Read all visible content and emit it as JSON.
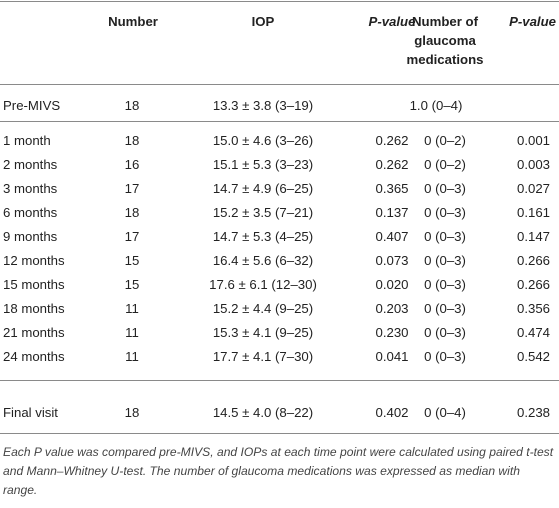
{
  "headers": {
    "number": "Number",
    "iop": "IOP",
    "p_value_1": "P-value",
    "medications_line1": "Number of",
    "medications_line2": "glaucoma",
    "medications_line3": "medications",
    "p_value_2": "P-value"
  },
  "pre": {
    "label": "Pre-MIVS",
    "number": "18",
    "iop": "13.3 ± 3.8 (3–19)",
    "medications": "1.0 (0–4)"
  },
  "rows": [
    {
      "label": "1 month",
      "number": "18",
      "iop": "15.0 ± 4.6 (3–26)",
      "p1": "0.262",
      "med": "0 (0–2)",
      "p2": "0.001"
    },
    {
      "label": "2 months",
      "number": "16",
      "iop": "15.1 ± 5.3 (3–23)",
      "p1": "0.262",
      "med": "0 (0–2)",
      "p2": "0.003"
    },
    {
      "label": "3 months",
      "number": "17",
      "iop": "14.7 ± 4.9 (6–25)",
      "p1": "0.365",
      "med": "0 (0–3)",
      "p2": "0.027"
    },
    {
      "label": "6 months",
      "number": "18",
      "iop": "15.2 ± 3.5 (7–21)",
      "p1": "0.137",
      "med": "0 (0–3)",
      "p2": "0.161"
    },
    {
      "label": "9 months",
      "number": "17",
      "iop": "14.7 ± 5.3 (4–25)",
      "p1": "0.407",
      "med": "0 (0–3)",
      "p2": "0.147"
    },
    {
      "label": "12 months",
      "number": "15",
      "iop": "16.4 ± 5.6 (6–32)",
      "p1": "0.073",
      "med": "0 (0–3)",
      "p2": "0.266"
    },
    {
      "label": "15 months",
      "number": "15",
      "iop": "17.6 ± 6.1 (12–30)",
      "p1": "0.020",
      "med": "0 (0–3)",
      "p2": "0.266"
    },
    {
      "label": "18 months",
      "number": "11",
      "iop": "15.2 ± 4.4 (9–25)",
      "p1": "0.203",
      "med": "0 (0–3)",
      "p2": "0.356"
    },
    {
      "label": "21 months",
      "number": "11",
      "iop": "15.3 ± 4.1 (9–25)",
      "p1": "0.230",
      "med": "0 (0–3)",
      "p2": "0.474"
    },
    {
      "label": "24 months",
      "number": "11",
      "iop": "17.7 ± 4.1 (7–30)",
      "p1": "0.041",
      "med": "0 (0–3)",
      "p2": "0.542"
    }
  ],
  "final": {
    "label": "Final visit",
    "number": "18",
    "iop": "14.5 ± 4.0 (8–22)",
    "p1": "0.402",
    "med": "0 (0–4)",
    "p2": "0.238"
  },
  "footnote": "Each P value was compared pre-MIVS, and IOPs at each time point were calculated using paired t-test and Mann–Whitney U-test. The number of glaucoma medications was expressed as median with range."
}
